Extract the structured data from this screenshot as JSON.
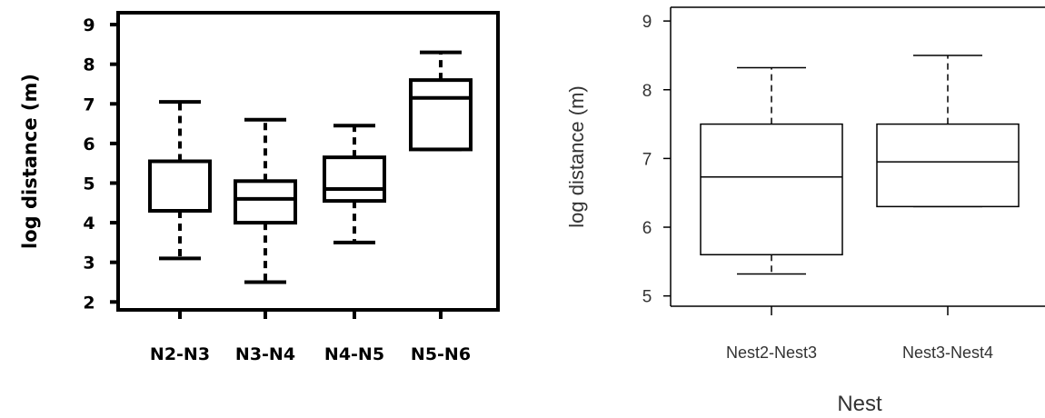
{
  "chart_data": [
    {
      "type": "box",
      "ylabel": "log distance (m)",
      "xlabel": "",
      "ylim": [
        1.8,
        9.3
      ],
      "yticks": [
        2,
        3,
        4,
        5,
        6,
        7,
        8,
        9
      ],
      "categories": [
        "N2-N3",
        "N3-N4",
        "N4-N5",
        "N5-N6"
      ],
      "boxes": [
        {
          "min": 3.1,
          "q1": 4.3,
          "median": 4.3,
          "q3": 5.55,
          "max": 7.05
        },
        {
          "min": 2.5,
          "q1": 4.0,
          "median": 4.6,
          "q3": 5.05,
          "max": 6.6
        },
        {
          "min": 3.5,
          "q1": 4.55,
          "median": 4.85,
          "q3": 5.65,
          "max": 6.45
        },
        {
          "min": 5.85,
          "q1": 5.85,
          "median": 7.15,
          "q3": 7.6,
          "max": 8.3
        }
      ]
    },
    {
      "type": "box",
      "ylabel": "log distance (m)",
      "xlabel": "Nest",
      "ylim": [
        4.85,
        9.2
      ],
      "yticks": [
        5,
        6,
        7,
        8,
        9
      ],
      "categories": [
        "Nest2-Nest3",
        "Nest3-Nest4"
      ],
      "boxes": [
        {
          "min": 5.32,
          "q1": 5.6,
          "median": 6.73,
          "q3": 7.5,
          "max": 8.32
        },
        {
          "min": 6.3,
          "q1": 6.3,
          "median": 6.95,
          "q3": 7.5,
          "max": 8.5
        }
      ]
    }
  ]
}
